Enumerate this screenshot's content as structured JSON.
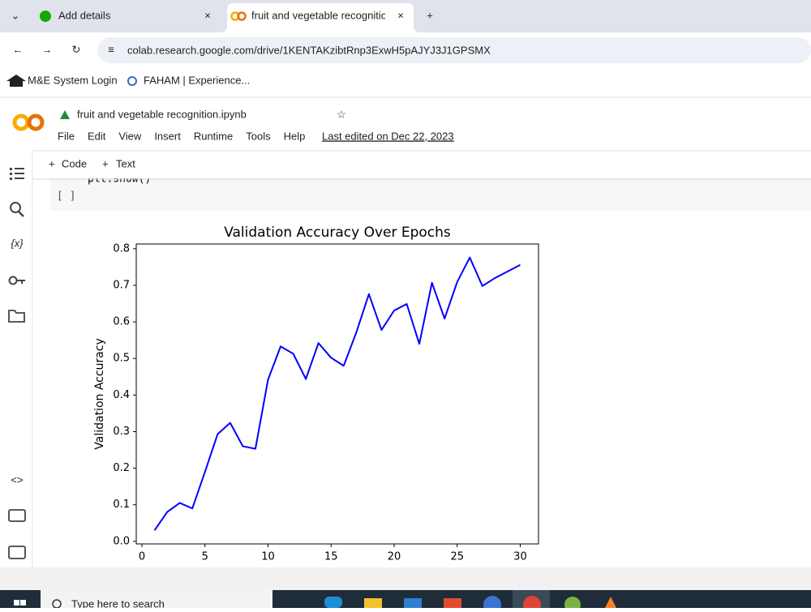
{
  "browser": {
    "tabs": [
      "Add details",
      "fruit and vegetable recognition"
    ],
    "url": "colab.research.google.com/drive/1KENTAKzibtRnp3ExwH5pAJYJ3J1GPSMX",
    "bookmarks": [
      "M&E System Login",
      "FAHAM | Experience..."
    ]
  },
  "notebook": {
    "title": "fruit and vegetable recognition.ipynb",
    "menu": [
      "File",
      "Edit",
      "View",
      "Insert",
      "Runtime",
      "Tools",
      "Help"
    ],
    "last_edited": "Last edited on Dec 22, 2023",
    "toolbar": [
      "Code",
      "Text"
    ],
    "variables_icon": "{x}",
    "code": "plt.show()",
    "run_label": "[ ]"
  },
  "chart_data": {
    "type": "line",
    "title": "Validation Accuracy Over Epochs",
    "x_label": "Epochs",
    "y_label": "Validation Accuracy",
    "x": [
      1,
      2,
      3,
      4,
      5,
      6,
      7,
      8,
      9,
      10,
      11,
      12,
      13,
      14,
      15,
      16,
      17,
      18,
      19,
      20,
      21,
      22,
      23,
      24,
      25,
      26,
      27,
      28,
      29,
      30
    ],
    "values": [
      0.03,
      0.08,
      0.105,
      0.09,
      0.19,
      0.293,
      0.324,
      0.26,
      0.253,
      0.442,
      0.533,
      0.513,
      0.444,
      0.542,
      0.502,
      0.48,
      0.571,
      0.676,
      0.578,
      0.631,
      0.649,
      0.54,
      0.707,
      0.609,
      0.709,
      0.776,
      0.698,
      0.72,
      0.738,
      0.756
    ],
    "color": "#0000ff",
    "xlim": [
      -0.45,
      31.45
    ],
    "ylim": [
      -0.007,
      0.813
    ],
    "xticks": [
      0,
      5,
      10,
      15,
      20,
      25,
      30
    ],
    "yticks": [
      {
        "value": 0,
        "label": "0.0"
      },
      0.1,
      0.2,
      0.3,
      0.4,
      0.5,
      0.6,
      0.7,
      0.8
    ]
  },
  "taskbar": {
    "search": "Type here to search"
  }
}
